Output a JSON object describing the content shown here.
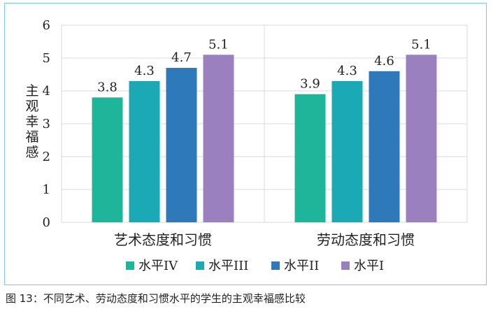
{
  "chart_data": {
    "type": "bar",
    "title": "",
    "ylabel": "主观幸福感",
    "xlabel": "",
    "ylim": [
      0,
      6
    ],
    "yticks": [
      0,
      1,
      2,
      3,
      4,
      5,
      6
    ],
    "categories": [
      "艺术态度和习惯",
      "劳动态度和习惯"
    ],
    "series": [
      {
        "name": "水平IV",
        "color": "#1fb59a",
        "values": [
          3.8,
          3.9
        ]
      },
      {
        "name": "水平III",
        "color": "#1ba9b5",
        "values": [
          4.3,
          4.3
        ]
      },
      {
        "name": "水平II",
        "color": "#2e79b9",
        "values": [
          4.7,
          4.6
        ]
      },
      {
        "name": "水平I",
        "color": "#9b80c0",
        "values": [
          5.1,
          5.1
        ]
      }
    ],
    "grid": true,
    "legend_position": "bottom"
  },
  "caption": "图 13：不同艺术、劳动态度和习惯水平的学生的主观幸福感比较"
}
